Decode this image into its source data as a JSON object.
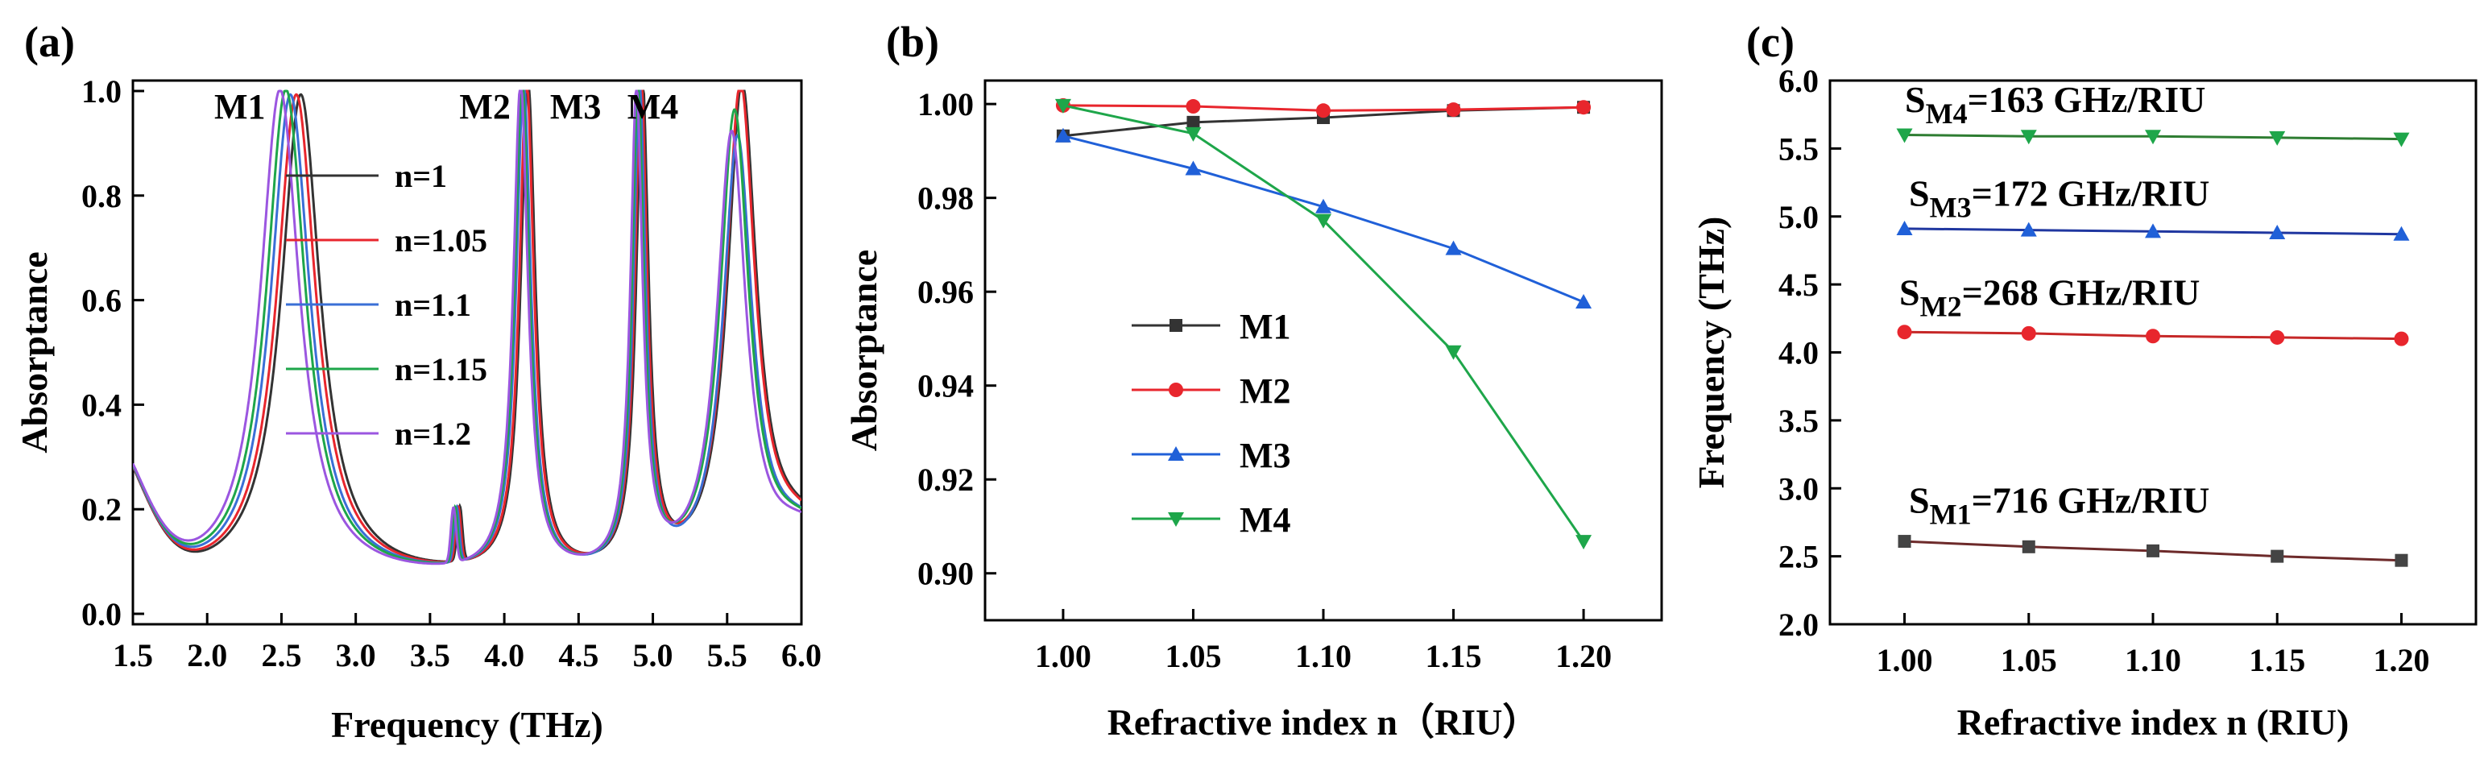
{
  "chart_data": [
    {
      "panel": "(a)",
      "type": "line",
      "xlabel": "Frequency (THz)",
      "ylabel": "Absorptance",
      "xlim": [
        1.5,
        6.0
      ],
      "ylim": [
        -0.02,
        1.02
      ],
      "xticks": [
        "1.5",
        "2.0",
        "2.5",
        "3.0",
        "3.5",
        "4.0",
        "4.5",
        "5.0",
        "5.5",
        "6.0"
      ],
      "yticks": [
        "0.0",
        "0.2",
        "0.4",
        "0.6",
        "0.8",
        "1.0"
      ],
      "legend_position": "center-left",
      "mode_labels": [
        {
          "text": "M1",
          "x": 2.22,
          "y": 0.96
        },
        {
          "text": "M2",
          "x": 3.87,
          "y": 0.96
        },
        {
          "text": "M3",
          "x": 4.48,
          "y": 0.96
        },
        {
          "text": "M4",
          "x": 5.0,
          "y": 0.96
        }
      ],
      "series": [
        {
          "name": "n=1",
          "color": "#333333",
          "shift": 0.0,
          "peaks": [
            [
              2.63,
              0.99,
              0.16
            ],
            [
              4.16,
              1.0,
              0.06
            ],
            [
              4.93,
              0.99,
              0.05
            ],
            [
              5.6,
              1.0,
              0.12
            ]
          ]
        },
        {
          "name": "n=1.05",
          "color": "#e8262d",
          "shift": -0.035,
          "peaks": [
            [
              2.6,
              0.99,
              0.16
            ],
            [
              4.15,
              1.0,
              0.06
            ],
            [
              4.92,
              0.99,
              0.05
            ],
            [
              5.59,
              1.0,
              0.12
            ]
          ]
        },
        {
          "name": "n=1.1",
          "color": "#3a6fd6",
          "shift": -0.07,
          "peaks": [
            [
              2.56,
              0.99,
              0.16
            ],
            [
              4.13,
              1.0,
              0.06
            ],
            [
              4.91,
              0.98,
              0.05
            ],
            [
              5.57,
              0.9,
              0.12
            ]
          ]
        },
        {
          "name": "n=1.15",
          "color": "#1ea64a",
          "shift": -0.105,
          "peaks": [
            [
              2.53,
              1.0,
              0.16
            ],
            [
              4.12,
              1.0,
              0.06
            ],
            [
              4.9,
              0.97,
              0.05
            ],
            [
              5.55,
              0.95,
              0.12
            ]
          ]
        },
        {
          "name": "n=1.2",
          "color": "#9b56e0",
          "shift": -0.14,
          "peaks": [
            [
              2.49,
              1.0,
              0.16
            ],
            [
              4.11,
              1.0,
              0.06
            ],
            [
              4.89,
              0.97,
              0.05
            ],
            [
              5.53,
              0.91,
              0.12
            ]
          ]
        }
      ],
      "dip": {
        "x": 3.7,
        "y": 0.15
      }
    },
    {
      "panel": "(b)",
      "type": "line",
      "xlabel": "Refractive index n（RIU）",
      "ylabel": "Absorptance",
      "xlim": [
        0.97,
        1.23
      ],
      "ylim": [
        0.89,
        1.005
      ],
      "xticks": [
        "1.00",
        "1.05",
        "1.10",
        "1.15",
        "1.20"
      ],
      "yticks": [
        "0.90",
        "0.92",
        "0.94",
        "0.96",
        "0.98",
        "1.00"
      ],
      "x": [
        1.0,
        1.05,
        1.1,
        1.15,
        1.2
      ],
      "legend_position": "center-left",
      "series": [
        {
          "name": "M1",
          "color": "#333333",
          "marker": "square",
          "values": [
            0.9932,
            0.9961,
            0.9971,
            0.9986,
            0.9993
          ]
        },
        {
          "name": "M2",
          "color": "#e8262d",
          "marker": "circle",
          "values": [
            0.9997,
            0.9995,
            0.9986,
            0.9988,
            0.9993
          ]
        },
        {
          "name": "M3",
          "color": "#2060d8",
          "marker": "triangle",
          "values": [
            0.9932,
            0.9862,
            0.9781,
            0.9692,
            0.9578
          ]
        },
        {
          "name": "M4",
          "color": "#1ea64a",
          "marker": "tri-down",
          "values": [
            0.9997,
            0.9937,
            0.9752,
            0.9472,
            0.9068
          ]
        }
      ]
    },
    {
      "panel": "(c)",
      "type": "line",
      "xlabel": "Refractive index n (RIU)",
      "ylabel": "Frequency (THz)",
      "xlim": [
        0.97,
        1.23
      ],
      "ylim": [
        2.0,
        6.0
      ],
      "xticks": [
        "1.00",
        "1.05",
        "1.10",
        "1.15",
        "1.20"
      ],
      "yticks": [
        "2.0",
        "2.5",
        "3.0",
        "3.5",
        "4.0",
        "4.5",
        "5.0",
        "5.5",
        "6.0"
      ],
      "x": [
        1.0,
        1.05,
        1.1,
        1.15,
        1.2
      ],
      "series": [
        {
          "name": "M4",
          "color": "#2e7d32",
          "marker_color": "#1ea64a",
          "marker": "tri-down",
          "values": [
            5.6,
            5.59,
            5.59,
            5.58,
            5.57
          ],
          "annotation_main": "S",
          "annotation_sub": "M4",
          "annotation_rest": "=163 GHz/RIU",
          "label_y": 5.77
        },
        {
          "name": "M3",
          "color": "#2037a0",
          "marker_color": "#2060d8",
          "marker": "triangle",
          "values": [
            4.91,
            4.9,
            4.89,
            4.88,
            4.87
          ],
          "annotation_main": "S",
          "annotation_sub": "M3",
          "annotation_rest": "=172 GHz/RIU",
          "label_y": 5.08
        },
        {
          "name": "M2",
          "color": "#c62828",
          "marker_color": "#e8262d",
          "marker": "circle",
          "values": [
            4.15,
            4.14,
            4.12,
            4.11,
            4.1
          ],
          "annotation_main": "S",
          "annotation_sub": "M2",
          "annotation_rest": "=268 GHz/RIU",
          "label_y": 4.35
        },
        {
          "name": "M1",
          "color": "#6d2a2a",
          "marker_color": "#444444",
          "marker": "square",
          "values": [
            2.61,
            2.57,
            2.54,
            2.5,
            2.47
          ],
          "annotation_main": "S",
          "annotation_sub": "M1",
          "annotation_rest": "=716 GHz/RIU",
          "label_y": 2.82
        }
      ]
    }
  ]
}
